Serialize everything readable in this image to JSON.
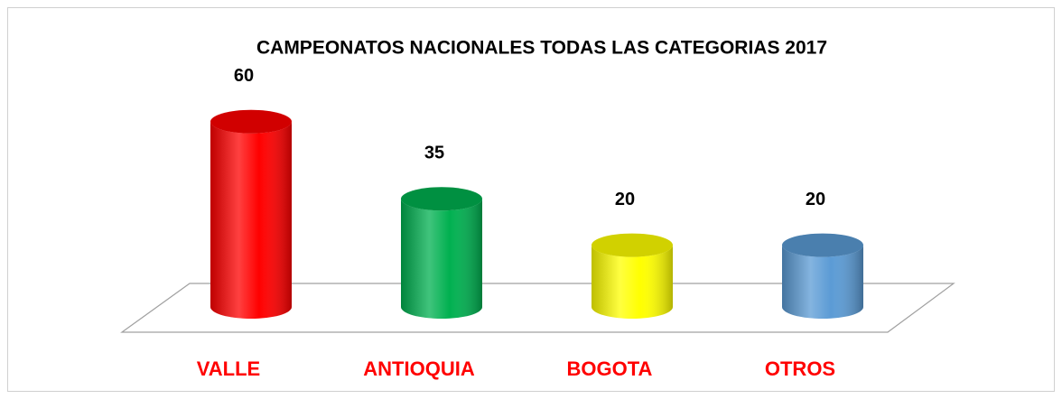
{
  "chart_data": {
    "type": "cylinder-bar",
    "title": "CAMPEONATOS NACIONALES TODAS LAS CATEGORIAS 2017",
    "categories": [
      "VALLE",
      "ANTIOQUIA",
      "BOGOTA",
      "OTROS"
    ],
    "values": [
      60,
      35,
      20,
      20
    ],
    "colors": [
      "#ff0000",
      "#00b050",
      "#ffff00",
      "#5b9bd5"
    ],
    "category_label_color": "#ff0000"
  }
}
